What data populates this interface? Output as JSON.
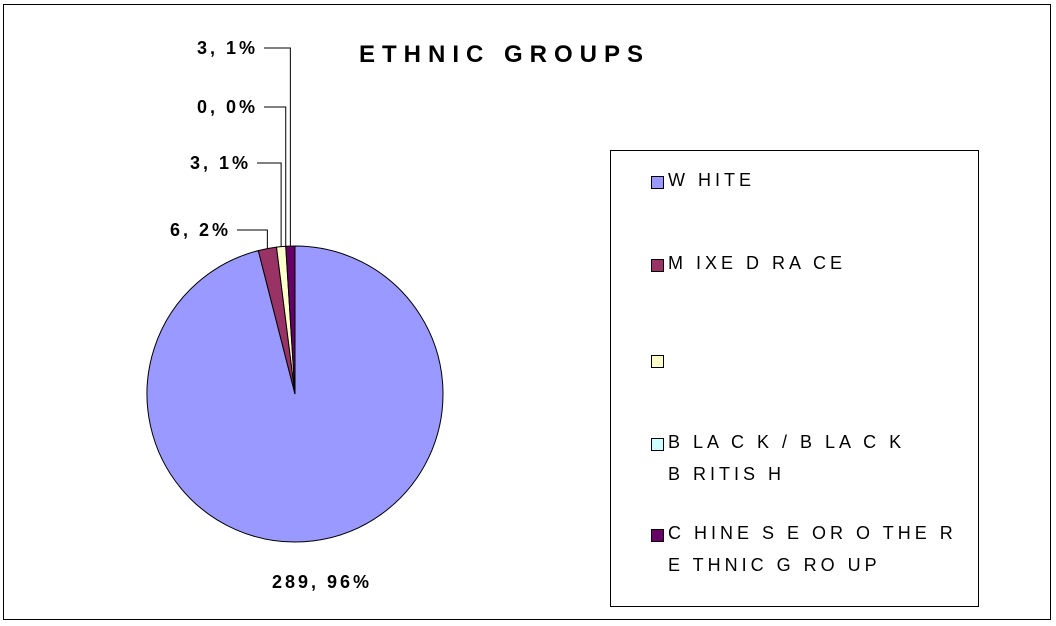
{
  "chart_data": {
    "type": "pie",
    "title": "ETHNIC GROUPS",
    "slices": [
      {
        "name": "W HITE",
        "value": 289,
        "percent": "96%",
        "label": "289, 96%",
        "color": "#9999ff"
      },
      {
        "name": "M IXE D RA CE",
        "value": 6,
        "percent": "2%",
        "label": "6, 2%",
        "color": "#993366"
      },
      {
        "name": "",
        "value": 3,
        "percent": "1%",
        "label": "3, 1%",
        "color": "#ffffcc"
      },
      {
        "name": "B LA C K / B LA C K B RITIS H",
        "value": 0,
        "percent": "0%",
        "label": "0, 0%",
        "color": "#ccffff"
      },
      {
        "name": "C HINE S E OR O THE R E THNIC G RO UP",
        "value": 3,
        "percent": "1%",
        "label": "3, 1%",
        "color": "#660066"
      }
    ],
    "legend_position": "right"
  }
}
